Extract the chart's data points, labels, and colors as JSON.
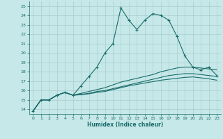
{
  "xlabel": "Humidex (Indice chaleur)",
  "xlim": [
    -0.5,
    23.5
  ],
  "ylim": [
    13.5,
    25.5
  ],
  "yticks": [
    14,
    15,
    16,
    17,
    18,
    19,
    20,
    21,
    22,
    23,
    24,
    25
  ],
  "xticks": [
    0,
    1,
    2,
    3,
    4,
    5,
    6,
    7,
    8,
    9,
    10,
    11,
    12,
    13,
    14,
    15,
    16,
    17,
    18,
    19,
    20,
    21,
    22,
    23
  ],
  "bg_color": "#c6e8e8",
  "grid_color": "#a8cece",
  "line_color": "#1a6b6b",
  "series_main": [
    13.8,
    15.0,
    15.0,
    15.5,
    15.8,
    15.5,
    16.5,
    17.5,
    18.5,
    20.0,
    21.0,
    24.8,
    23.5,
    22.5,
    23.5,
    24.2,
    24.0,
    23.5,
    21.8,
    19.7,
    18.5,
    18.2,
    18.5,
    17.6
  ],
  "series2": [
    13.8,
    15.0,
    15.0,
    15.5,
    15.8,
    15.5,
    15.7,
    15.9,
    16.1,
    16.3,
    16.6,
    16.9,
    17.1,
    17.3,
    17.5,
    17.7,
    18.0,
    18.2,
    18.4,
    18.5,
    18.5,
    18.4,
    18.3,
    18.2
  ],
  "series3": [
    13.8,
    15.0,
    15.0,
    15.5,
    15.8,
    15.5,
    15.6,
    15.7,
    15.9,
    16.0,
    16.2,
    16.4,
    16.6,
    16.8,
    17.0,
    17.2,
    17.4,
    17.6,
    17.7,
    17.8,
    17.8,
    17.7,
    17.6,
    17.5
  ],
  "series4": [
    13.8,
    15.0,
    15.0,
    15.5,
    15.8,
    15.5,
    15.55,
    15.65,
    15.8,
    15.9,
    16.1,
    16.3,
    16.5,
    16.65,
    16.8,
    16.95,
    17.1,
    17.2,
    17.3,
    17.4,
    17.45,
    17.35,
    17.25,
    17.1
  ]
}
